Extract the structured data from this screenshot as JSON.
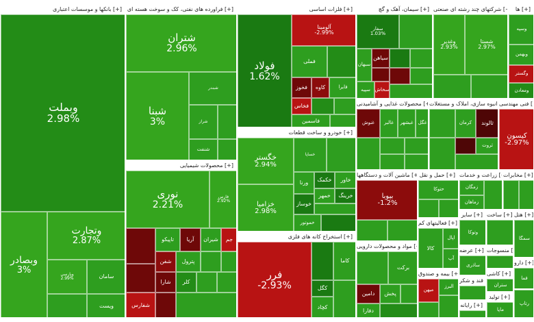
{
  "sections": {
    "banks": "بانکها و موسسات اعتباری [+]",
    "refinery": "فراورده های نفتی، کک و سوخت هسته ای [+]",
    "basemetals": "فلزات اساسی [+]",
    "cement": "سیمان، آهک و گچ [+]",
    "holding": "شرکتهای چند رشته ای صنعتی [+]",
    "chemical": "محصولات شیمیایی [+]",
    "auto": "خودرو و ساخت قطعات [+]",
    "food": "محصولات غذایی و آشامیدنی [+]",
    "realestate": "انبوه سازی، املاک و مستغلات [+]",
    "engineering": "فنی مهندسی [+]",
    "machinery": "ماشین آلات و دستگاهها [+]",
    "transport": "حمل و نقل [+]",
    "agri": "زراعت و خدمات [+]",
    "mining": "استخراج کانه های فلزی [+]",
    "pharma": "مواد و محصولات دارویی [+]",
    "otherfin": "فعالیتهای کم [+]",
    "misc1": "سایر [+]",
    "electric": "ساخت [+]",
    "insurance": "بیمه و صندوق [+]",
    "sugar": "قند و شکر [+]",
    "others2": "منسوجات [+]",
    "tile": "کاشی [+]",
    "pipe": "تولید [+]",
    "hotel": "هتل [+]",
    "telecom": "مخابرات [+]",
    "comp": "رایانه [+]",
    "invest": "عرضه [+]",
    "drug2": "دارو [+]",
    "misc2": "ها [+]"
  },
  "tiles": [
    {
      "name": "وبملت",
      "pct": "2.98%",
      "cls": "g3"
    },
    {
      "name": "وتجارت",
      "pct": "2.87%",
      "cls": "g2"
    },
    {
      "name": "وبصادر",
      "pct": "3%",
      "cls": "g2"
    },
    {
      "name": "وپارسی",
      "pct": "2.99%",
      "cls": "g2"
    },
    {
      "name": "سامان",
      "pct": "",
      "cls": "g1"
    },
    {
      "name": "ویست",
      "pct": "",
      "cls": "g1"
    },
    {
      "name": "شتران",
      "pct": "2.96%",
      "cls": "g2"
    },
    {
      "name": "شبنا",
      "pct": "3%",
      "cls": "g2"
    },
    {
      "name": "شبندر",
      "pct": "",
      "cls": "g1"
    },
    {
      "name": "شراز",
      "pct": "",
      "cls": "g1"
    },
    {
      "name": "شنفت",
      "pct": "",
      "cls": "g1"
    },
    {
      "name": "نوری",
      "pct": "2.21%",
      "cls": "g2"
    },
    {
      "name": "فارس",
      "pct": "2.92%",
      "cls": "g2"
    },
    {
      "name": "تاپیکو",
      "pct": "",
      "cls": "g1"
    },
    {
      "name": "آریا",
      "pct": "",
      "cls": "r3"
    },
    {
      "name": "شیران",
      "pct": "",
      "cls": "g1"
    },
    {
      "name": "جم",
      "pct": "",
      "cls": "r1"
    },
    {
      "name": "شفن",
      "pct": "",
      "cls": "r2"
    },
    {
      "name": "پترول",
      "pct": "",
      "cls": "g1"
    },
    {
      "name": "شارا",
      "pct": "",
      "cls": "r3"
    },
    {
      "name": "کلر",
      "pct": "",
      "cls": "g3"
    },
    {
      "name": "شفارس",
      "pct": "",
      "cls": "r1"
    },
    {
      "name": "فولاد",
      "pct": "1.62%",
      "cls": "g4"
    },
    {
      "name": "فملی",
      "pct": "",
      "cls": "g1"
    },
    {
      "name": "کاوه",
      "pct": "",
      "cls": "r2"
    },
    {
      "name": "فخوز",
      "pct": "",
      "cls": "r3"
    },
    {
      "name": "فخاس",
      "pct": "",
      "cls": "r1"
    },
    {
      "name": "فاسمین",
      "pct": "",
      "cls": "g1"
    },
    {
      "name": "فایرا",
      "pct": "",
      "cls": "g1"
    },
    {
      "name": "آلومینا",
      "pct": "-2.99%",
      "cls": "r1"
    },
    {
      "name": "خگستر",
      "pct": "2.94%",
      "cls": "g2"
    },
    {
      "name": "خزامیا",
      "pct": "2.98%",
      "cls": "g2"
    },
    {
      "name": "خساپا",
      "pct": "",
      "cls": "g1"
    },
    {
      "name": "ورنا",
      "pct": "",
      "cls": "g1"
    },
    {
      "name": "خکمک",
      "pct": "",
      "cls": "g4"
    },
    {
      "name": "خودرو",
      "pct": "",
      "cls": "g1"
    },
    {
      "name": "خاور",
      "pct": "",
      "cls": "g1"
    },
    {
      "name": "خمهر",
      "pct": "",
      "cls": "g1"
    },
    {
      "name": "خرینگ",
      "pct": "",
      "cls": "g4"
    },
    {
      "name": "خوساز",
      "pct": "",
      "cls": "g4"
    },
    {
      "name": "خموتور",
      "pct": "",
      "cls": "g1"
    },
    {
      "name": "فرر",
      "pct": "-2.93%",
      "cls": "r1"
    },
    {
      "name": "کاما",
      "pct": "",
      "cls": "g1"
    },
    {
      "name": "کگل",
      "pct": "",
      "cls": "g4"
    },
    {
      "name": "کچاد",
      "pct": "",
      "cls": "g1"
    },
    {
      "name": "سفار",
      "pct": "1.03%",
      "cls": "g4"
    },
    {
      "name": "سیاهن",
      "pct": "",
      "cls": "r3"
    },
    {
      "name": "سبهان",
      "pct": "",
      "cls": "g1"
    },
    {
      "name": "سپیه",
      "pct": "",
      "cls": "g1"
    },
    {
      "name": "سخاش",
      "pct": "",
      "cls": "r1"
    },
    {
      "name": "وغدیر",
      "pct": "2.93%",
      "cls": "g2"
    },
    {
      "name": "شستا",
      "pct": "2.97%",
      "cls": "g2"
    },
    {
      "name": "وسپه",
      "pct": "",
      "cls": "g1"
    },
    {
      "name": "وبهمن",
      "pct": "",
      "cls": "g1"
    },
    {
      "name": "وگستر",
      "pct": "",
      "cls": "r1"
    },
    {
      "name": "ومعادن",
      "pct": "",
      "cls": "g3"
    },
    {
      "name": "غالبر",
      "pct": "",
      "cls": "g1"
    },
    {
      "name": "غبشهر",
      "pct": "",
      "cls": "g1"
    },
    {
      "name": "غگل",
      "pct": "",
      "cls": "g1"
    },
    {
      "name": "غنوش",
      "pct": "",
      "cls": "r3"
    },
    {
      "name": "ثالوند",
      "pct": "",
      "cls": "r4"
    },
    {
      "name": "کرمان",
      "pct": "",
      "cls": "g1"
    },
    {
      "name": "ثروت",
      "pct": "",
      "cls": "g1"
    },
    {
      "name": "کیسون",
      "pct": "-2.97%",
      "cls": "r1"
    },
    {
      "name": "بیوبا",
      "pct": "-1.2%",
      "cls": "r2"
    },
    {
      "name": "زمگان",
      "pct": "",
      "cls": "g1"
    },
    {
      "name": "زماهان",
      "pct": "",
      "cls": "g1"
    },
    {
      "name": "رتاپ",
      "pct": "",
      "cls": "g1"
    },
    {
      "name": "دامین",
      "pct": "",
      "cls": "r3"
    },
    {
      "name": "دفارا",
      "pct": "",
      "cls": "g1"
    },
    {
      "name": "برکت",
      "pct": "",
      "cls": "g1"
    },
    {
      "name": "پخش",
      "pct": "",
      "cls": "g1"
    },
    {
      "name": "کالا",
      "pct": "",
      "cls": "g1"
    },
    {
      "name": "اپال",
      "pct": "",
      "cls": "g1"
    },
    {
      "name": "آپ",
      "pct": "",
      "cls": "g1"
    },
    {
      "name": "البرز",
      "pct": "",
      "cls": "g1"
    },
    {
      "name": "میهن",
      "pct": "",
      "cls": "r1"
    },
    {
      "name": "وتوکا",
      "pct": "",
      "cls": "g1"
    },
    {
      "name": "ساذری",
      "pct": "",
      "cls": "g1"
    },
    {
      "name": "ستران",
      "pct": "",
      "cls": "g1"
    },
    {
      "name": "حتوکا",
      "pct": "",
      "cls": "g1"
    },
    {
      "name": "ماپا",
      "pct": "",
      "cls": "g1"
    },
    {
      "name": "سمگا",
      "pct": "",
      "cls": "g1"
    },
    {
      "name": "فما",
      "pct": "",
      "cls": "g1"
    }
  ],
  "colors": {
    "up": "#2e9e1f",
    "down": "#b81313",
    "header_bg": "#ffffff"
  }
}
